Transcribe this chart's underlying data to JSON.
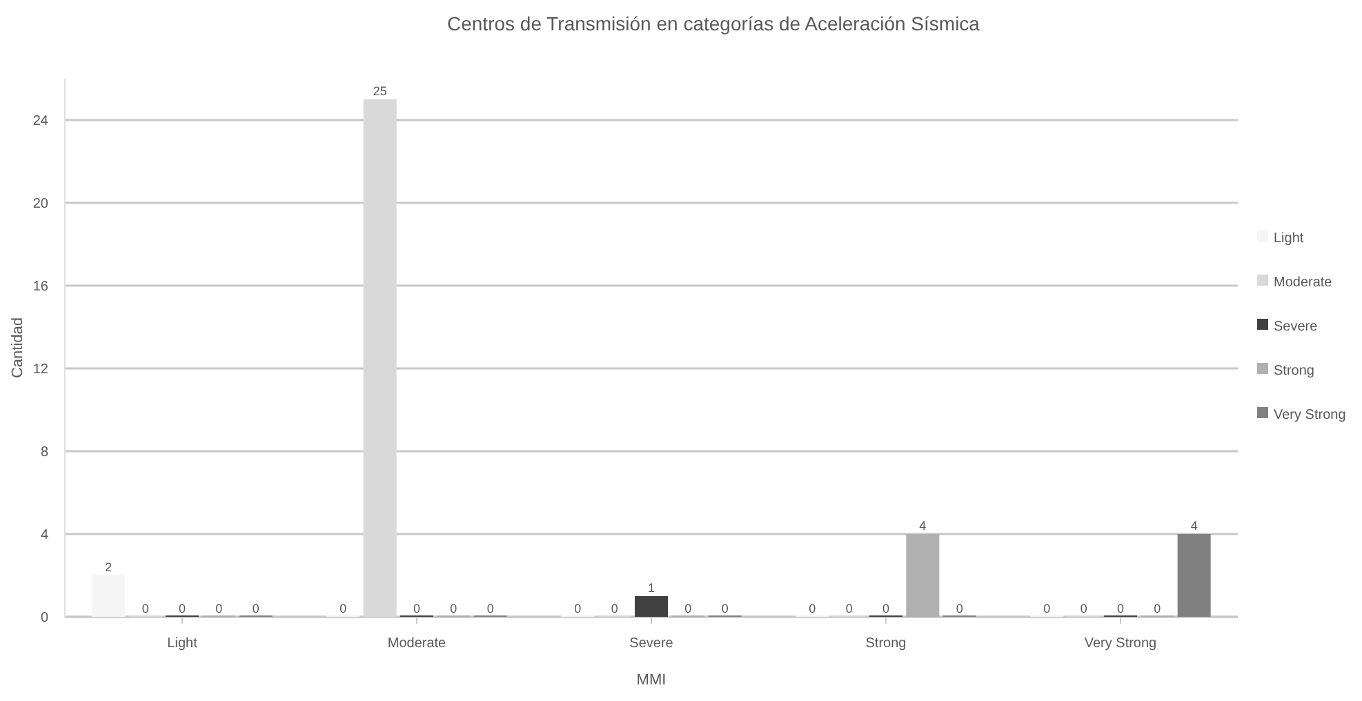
{
  "chart_data": {
    "type": "bar",
    "title": "Centros de Transmisión en categorías de Aceleración Sísmica",
    "xlabel": "MMI",
    "ylabel": "Cantidad",
    "categories": [
      "Light",
      "Moderate",
      "Severe",
      "Strong",
      "Very Strong"
    ],
    "series": [
      {
        "name": "Light",
        "color": "#f5f5f5",
        "values": [
          2,
          0,
          0,
          0,
          0
        ]
      },
      {
        "name": "Moderate",
        "color": "#d9d9d9",
        "values": [
          0,
          25,
          0,
          0,
          0
        ]
      },
      {
        "name": "Severe",
        "color": "#404040",
        "values": [
          0,
          0,
          1,
          0,
          0
        ]
      },
      {
        "name": "Strong",
        "color": "#b0b0b0",
        "values": [
          0,
          0,
          0,
          4,
          0
        ]
      },
      {
        "name": "Very Strong",
        "color": "#808080",
        "values": [
          0,
          0,
          0,
          0,
          4
        ]
      }
    ],
    "ylim": [
      0,
      26
    ],
    "yticks": [
      0,
      4,
      8,
      12,
      16,
      20,
      24
    ],
    "grid": "y",
    "legend": "right",
    "data_labels": true
  }
}
